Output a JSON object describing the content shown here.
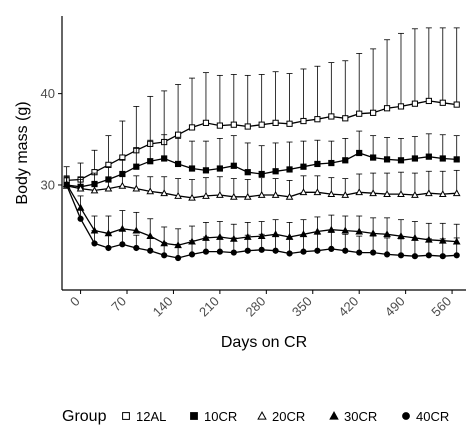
{
  "chart_data": {
    "type": "line",
    "xlabel": "Days on CR",
    "ylabel": "Body mass (g)",
    "xlim": [
      -28,
      581
    ],
    "ylim": [
      18.5,
      48.5
    ],
    "x_ticks": [
      0,
      70,
      140,
      210,
      280,
      350,
      420,
      490,
      560
    ],
    "x_tick_labels": [
      "0",
      "70",
      "140",
      "210",
      "280",
      "350",
      "420",
      "490",
      "560"
    ],
    "y_ticks": [
      30,
      40
    ],
    "y_tick_labels": [
      "30",
      "40"
    ],
    "grid": false,
    "error_bars": "upper",
    "legend": {
      "title": "Group",
      "placement": "bottom",
      "entries": [
        "12AL",
        "10CR",
        "20CR",
        "30CR",
        "40CR"
      ]
    },
    "x": [
      -21,
      0,
      21,
      42,
      63,
      84,
      105,
      126,
      147,
      168,
      189,
      210,
      231,
      252,
      273,
      294,
      315,
      336,
      357,
      378,
      399,
      420,
      441,
      462,
      483,
      504,
      525,
      546,
      567
    ],
    "series": [
      {
        "name": "12AL",
        "marker": "open-square",
        "values": [
          30.5,
          30.6,
          31.4,
          32.2,
          33.0,
          33.8,
          34.5,
          34.7,
          35.5,
          36.3,
          36.8,
          36.5,
          36.6,
          36.4,
          36.6,
          36.8,
          36.7,
          37.0,
          37.2,
          37.5,
          37.3,
          37.8,
          37.9,
          38.4,
          38.6,
          38.9,
          39.2,
          39.0,
          38.8
        ],
        "errors": [
          1.5,
          1.8,
          2.4,
          3.2,
          4.0,
          4.8,
          5.2,
          5.6,
          5.5,
          5.4,
          5.5,
          5.5,
          5.5,
          5.6,
          5.5,
          5.6,
          5.5,
          5.7,
          5.8,
          5.9,
          6.3,
          6.6,
          7.0,
          7.5,
          8.0,
          8.2,
          8.0,
          8.2,
          8.4
        ]
      },
      {
        "name": "10CR",
        "marker": "filled-square",
        "values": [
          30.0,
          29.8,
          30.1,
          30.6,
          31.2,
          32.0,
          32.6,
          32.9,
          32.3,
          31.8,
          31.6,
          31.8,
          32.1,
          31.4,
          31.2,
          31.5,
          31.7,
          32.0,
          32.3,
          32.4,
          32.7,
          33.5,
          33.0,
          32.8,
          32.7,
          32.9,
          33.1,
          32.9,
          32.8
        ],
        "errors": [
          1.0,
          1.0,
          1.2,
          1.4,
          1.6,
          2.0,
          2.3,
          2.6,
          2.8,
          3.0,
          3.2,
          3.3,
          3.3,
          3.2,
          3.1,
          3.1,
          3.0,
          2.8,
          2.6,
          2.4,
          2.4,
          2.4,
          2.4,
          2.4,
          2.4,
          2.4,
          2.5,
          2.6,
          2.6
        ]
      },
      {
        "name": "20CR",
        "marker": "open-triangle",
        "values": [
          29.9,
          29.6,
          29.4,
          29.6,
          29.9,
          29.6,
          29.3,
          29.1,
          28.8,
          28.6,
          28.8,
          28.9,
          28.7,
          28.7,
          28.9,
          28.9,
          28.7,
          29.2,
          29.2,
          29.0,
          28.9,
          29.2,
          29.1,
          29.0,
          29.0,
          28.9,
          29.1,
          29.0,
          29.1
        ],
        "errors": [
          1.0,
          1.0,
          1.0,
          1.0,
          1.1,
          1.4,
          1.6,
          1.8,
          1.9,
          2.0,
          2.0,
          2.0,
          2.0,
          1.9,
          1.9,
          1.8,
          1.8,
          1.8,
          1.8,
          1.8,
          1.8,
          2.0,
          2.2,
          2.3,
          2.4,
          2.4,
          2.4,
          2.5,
          2.5
        ]
      },
      {
        "name": "30CR",
        "marker": "filled-triangle",
        "values": [
          30.1,
          27.5,
          25.0,
          24.7,
          25.2,
          25.0,
          24.4,
          23.6,
          23.4,
          23.8,
          24.2,
          24.3,
          24.1,
          24.3,
          24.4,
          24.6,
          24.3,
          24.6,
          24.9,
          25.1,
          25.0,
          24.9,
          24.7,
          24.6,
          24.4,
          24.2,
          24.0,
          23.9,
          23.8
        ],
        "errors": [
          0.8,
          1.3,
          1.6,
          1.9,
          2.0,
          2.0,
          1.9,
          1.8,
          1.8,
          1.7,
          1.7,
          1.7,
          1.6,
          1.6,
          1.6,
          1.6,
          1.6,
          1.6,
          1.6,
          1.6,
          1.6,
          1.7,
          1.7,
          1.8,
          1.8,
          1.8,
          1.8,
          1.9,
          1.9
        ]
      },
      {
        "name": "40CR",
        "marker": "filled-circle",
        "values": [
          30.0,
          26.3,
          23.6,
          23.1,
          23.5,
          23.1,
          22.8,
          22.3,
          22.0,
          22.4,
          22.7,
          22.7,
          22.6,
          22.8,
          22.9,
          22.8,
          22.5,
          22.7,
          22.8,
          23.0,
          22.8,
          22.6,
          22.6,
          22.4,
          22.3,
          22.2,
          22.3,
          22.2,
          22.3
        ],
        "errors": [
          0.8,
          1.0,
          1.4,
          1.6,
          1.5,
          1.4,
          1.4,
          1.4,
          1.5,
          1.5,
          1.6,
          1.6,
          1.6,
          1.7,
          1.7,
          1.7,
          1.7,
          1.7,
          1.8,
          1.8,
          1.8,
          1.8,
          1.8,
          1.8,
          1.8,
          1.8,
          1.8,
          1.9,
          1.9
        ]
      }
    ]
  },
  "colors": {
    "ink": "#000000",
    "tick_text": "#4d4d4d",
    "background": "#ffffff"
  }
}
